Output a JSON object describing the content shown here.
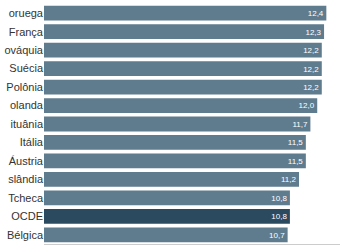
{
  "chart_data": {
    "type": "bar",
    "orientation": "horizontal",
    "categories": [
      "oruega",
      "França",
      "ováquia",
      "Suécia",
      "Polônia",
      "olanda",
      "ituânia",
      "Itália",
      "Áustria",
      "slândia",
      "Tcheca",
      "OCDE",
      "Bélgica"
    ],
    "values": [
      12.4,
      12.3,
      12.2,
      12.2,
      12.2,
      12.0,
      11.7,
      11.5,
      11.5,
      11.2,
      10.8,
      10.8,
      10.7
    ],
    "value_labels": [
      "12,4",
      "12,3",
      "12,2",
      "12,2",
      "12,2",
      "12,0",
      "11,7",
      "11,5",
      "11,5",
      "11,2",
      "10,8",
      "10,8",
      "10,7"
    ],
    "colors": [
      "#5f7b8e",
      "#5f7b8e",
      "#5f7b8e",
      "#5f7b8e",
      "#5f7b8e",
      "#5f7b8e",
      "#5f7b8e",
      "#5f7b8e",
      "#5f7b8e",
      "#5f7b8e",
      "#5f7b8e",
      "#2c4a5f",
      "#5f7b8e"
    ],
    "xlim": [
      0,
      13
    ],
    "data_labels": true,
    "tick_labels": "y",
    "grid": false
  }
}
